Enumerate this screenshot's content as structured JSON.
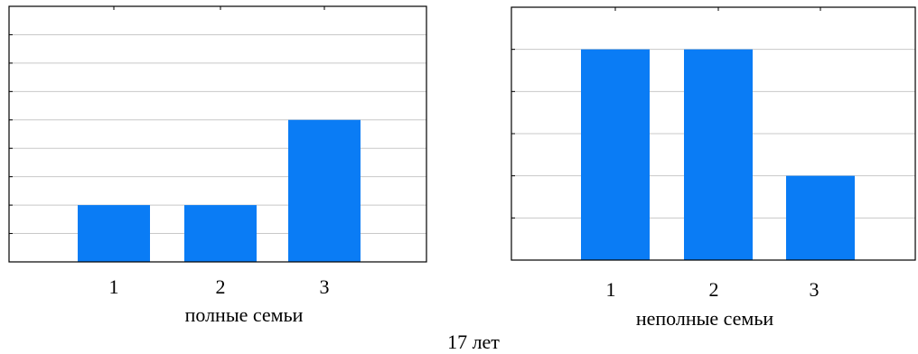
{
  "figure": {
    "caption": "17 лет"
  },
  "colors": {
    "bar": "#0a7cf5",
    "grid": "#c8c8c8",
    "frame": "#000000"
  },
  "chart_data": [
    {
      "type": "bar",
      "categories": [
        "1",
        "2",
        "3"
      ],
      "values": [
        1,
        1,
        2.5
      ],
      "xlabel": "полные семьи",
      "ylabel": "",
      "ylim": [
        0,
        4.5
      ],
      "grid": true,
      "grid_step": 0.5
    },
    {
      "type": "bar",
      "categories": [
        "1",
        "2",
        "3"
      ],
      "values": [
        5,
        5,
        2
      ],
      "xlabel": "неполные семьи",
      "ylabel": "",
      "ylim": [
        0,
        6
      ],
      "grid": true,
      "grid_step": 1
    }
  ]
}
